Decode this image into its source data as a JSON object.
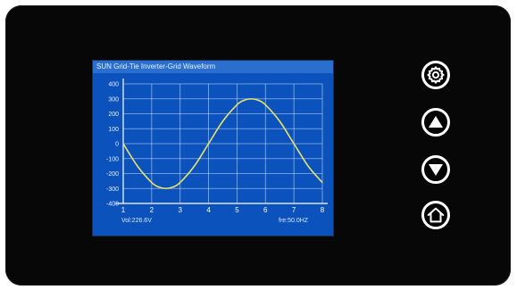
{
  "screen": {
    "title": "SUN Grid-Tie Inverter-Grid Waveform",
    "status_left": "Vol:226.6V",
    "status_right": "fre:50.0HZ"
  },
  "chart_data": {
    "type": "line",
    "title": "SUN Grid-Tie Inverter-Grid Waveform",
    "xlabel": "",
    "ylabel": "",
    "xlim": [
      1,
      8
    ],
    "ylim": [
      -400,
      400
    ],
    "xticks": [
      "1",
      "2",
      "3",
      "4",
      "5",
      "6",
      "7",
      "8"
    ],
    "yticks": [
      "400",
      "300",
      "200",
      "100",
      "0",
      "-100",
      "-200",
      "-300",
      "-400"
    ],
    "grid": true,
    "series": [
      {
        "color": "#e8e36a",
        "x": [
          1.0,
          1.5,
          2.0,
          2.25,
          2.5,
          2.75,
          3.0,
          3.5,
          4.0,
          4.5,
          5.0,
          5.25,
          5.5,
          5.75,
          6.0,
          6.5,
          7.0,
          7.5,
          8.0
        ],
        "y": [
          0,
          -150,
          -260,
          -290,
          -300,
          -290,
          -260,
          -150,
          0,
          150,
          260,
          290,
          300,
          290,
          260,
          150,
          0,
          -150,
          -260
        ]
      }
    ]
  },
  "buttons": [
    {
      "name": "settings-button",
      "icon": "gear-icon"
    },
    {
      "name": "up-button",
      "icon": "triangle-up-icon"
    },
    {
      "name": "down-button",
      "icon": "triangle-down-icon"
    },
    {
      "name": "home-button",
      "icon": "home-icon"
    }
  ],
  "colors": {
    "bezel": "#070707",
    "screen": "#0b52bd",
    "title_bar": "#2a6fd0",
    "waveform": "#e8e36a",
    "grid": "#ffffff"
  }
}
